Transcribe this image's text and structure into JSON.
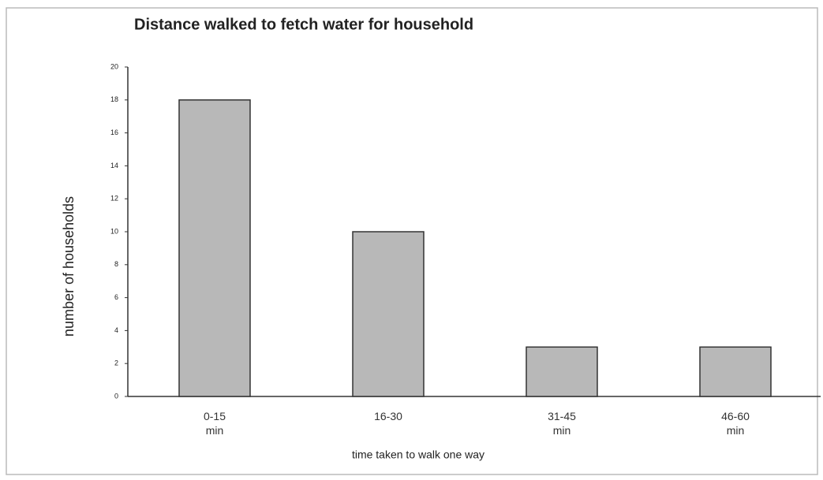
{
  "chart_data": {
    "type": "bar",
    "title": "Distance walked to fetch water for household",
    "x_label": "time taken to walk one way",
    "y_label": "number of households",
    "categories": [
      "0-15\nmin",
      "16-30",
      "31-45\nmin",
      "46-60\nmin"
    ],
    "values": [
      18,
      10,
      3,
      3
    ],
    "color": "#b8b8b8",
    "ylim": [
      0,
      20
    ],
    "yticks": [
      0,
      2,
      4,
      6,
      8,
      10,
      12,
      14,
      16,
      18,
      20
    ],
    "grid": false
  }
}
